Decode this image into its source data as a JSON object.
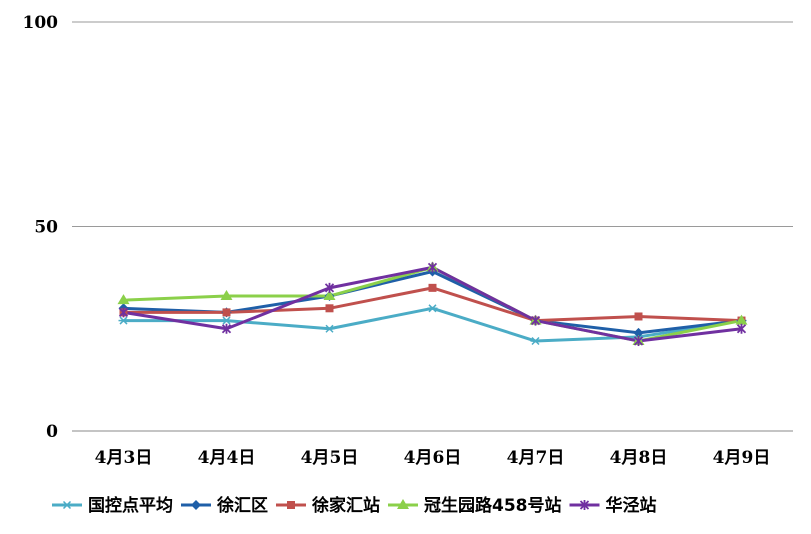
{
  "chart_data": {
    "type": "line",
    "categories": [
      "4月3日",
      "4月4日",
      "4月5日",
      "4月6日",
      "4月7日",
      "4月8日",
      "4月9日"
    ],
    "y_ticks": [
      "0",
      "50",
      "100"
    ],
    "ylim": [
      0,
      100
    ],
    "grid": true,
    "legend_position": "bottom",
    "series": [
      {
        "name": "国控点平均",
        "color": "#4bacc6",
        "marker": "asterisk",
        "values": [
          27,
          27,
          25,
          30,
          22,
          23,
          27
        ]
      },
      {
        "name": "徐汇区",
        "color": "#1f5fa8",
        "marker": "diamond",
        "values": [
          30,
          29,
          33,
          39,
          27,
          24,
          27
        ]
      },
      {
        "name": "徐家汇站",
        "color": "#c0504d",
        "marker": "square",
        "values": [
          29,
          29,
          30,
          35,
          27,
          28,
          27
        ]
      },
      {
        "name": "冠生园路458号站",
        "color": "#8bd04a",
        "marker": "triangle",
        "values": [
          32,
          33,
          33,
          40,
          27,
          22,
          27
        ]
      },
      {
        "name": "华泾站",
        "color": "#7030a0",
        "marker": "star",
        "values": [
          29,
          25,
          35,
          40,
          27,
          22,
          25
        ]
      }
    ]
  }
}
